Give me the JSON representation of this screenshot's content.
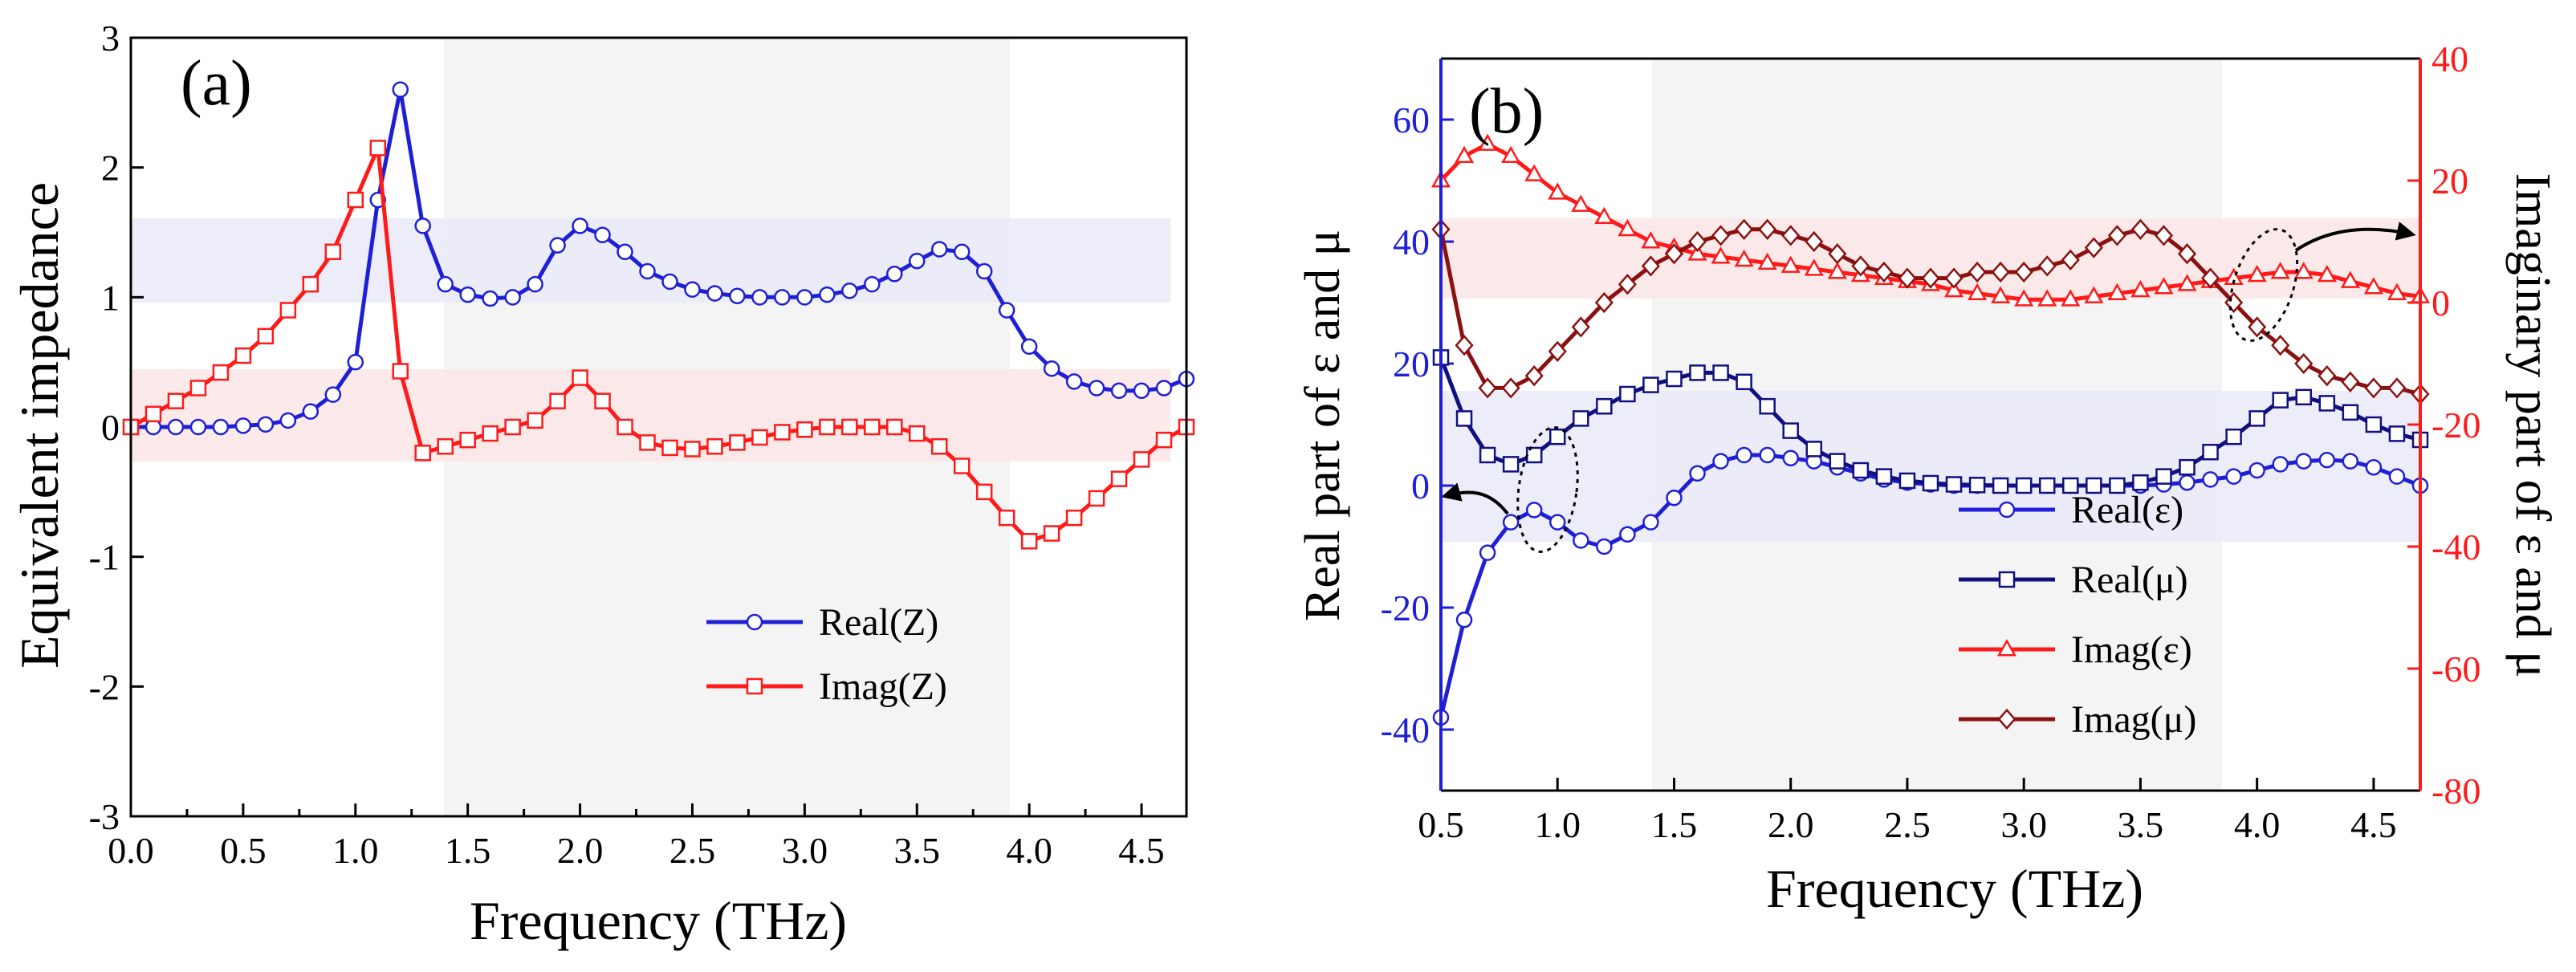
{
  "chart_data": [
    {
      "panel": "(a)",
      "type": "line",
      "xlabel": "Frequency (THz)",
      "ylabel": "Equivalent impedance",
      "xlim": [
        0,
        4.7
      ],
      "ylim": [
        -3,
        3
      ],
      "xticks": [
        "0.0",
        "0.5",
        "1.0",
        "1.5",
        "2.0",
        "2.5",
        "3.0",
        "3.5",
        "4.0",
        "4.5"
      ],
      "yticks": [
        "-3",
        "-2",
        "-1",
        "0",
        "1",
        "2",
        "3"
      ],
      "x": [
        0.0,
        0.1,
        0.2,
        0.3,
        0.4,
        0.5,
        0.6,
        0.7,
        0.8,
        0.9,
        1.0,
        1.1,
        1.2,
        1.3,
        1.4,
        1.5,
        1.6,
        1.7,
        1.8,
        1.9,
        2.0,
        2.1,
        2.2,
        2.3,
        2.4,
        2.5,
        2.6,
        2.7,
        2.8,
        2.9,
        3.0,
        3.1,
        3.2,
        3.3,
        3.4,
        3.5,
        3.6,
        3.7,
        3.8,
        3.9,
        4.0,
        4.1,
        4.2,
        4.3,
        4.4,
        4.5,
        4.6,
        4.7
      ],
      "series": [
        {
          "name": "Real(Z)",
          "color": "#1f1fd6",
          "marker": "circle",
          "values": [
            0.0,
            0.0,
            0.0,
            0.0,
            0.0,
            0.01,
            0.02,
            0.05,
            0.12,
            0.25,
            0.5,
            1.75,
            2.6,
            1.55,
            1.1,
            1.02,
            0.99,
            1.0,
            1.1,
            1.4,
            1.55,
            1.48,
            1.35,
            1.2,
            1.12,
            1.06,
            1.03,
            1.01,
            1.0,
            1.0,
            1.0,
            1.02,
            1.05,
            1.1,
            1.18,
            1.28,
            1.37,
            1.35,
            1.2,
            0.9,
            0.62,
            0.45,
            0.35,
            0.3,
            0.28,
            0.28,
            0.3,
            0.37
          ]
        },
        {
          "name": "Imag(Z)",
          "color": "#ff1a1a",
          "marker": "square",
          "values": [
            0.0,
            0.1,
            0.2,
            0.3,
            0.42,
            0.55,
            0.7,
            0.9,
            1.1,
            1.35,
            1.75,
            2.15,
            0.43,
            -0.2,
            -0.15,
            -0.1,
            -0.05,
            0.0,
            0.05,
            0.2,
            0.38,
            0.2,
            0.0,
            -0.12,
            -0.16,
            -0.17,
            -0.15,
            -0.12,
            -0.08,
            -0.04,
            -0.02,
            0.0,
            0.0,
            0.0,
            0.0,
            -0.05,
            -0.15,
            -0.3,
            -0.5,
            -0.7,
            -0.88,
            -0.82,
            -0.7,
            -0.55,
            -0.4,
            -0.25,
            -0.1,
            0.0
          ]
        }
      ],
      "legend": {
        "position": "bottom-right",
        "entries": [
          "Real(Z)",
          "Imag(Z)"
        ]
      }
    },
    {
      "panel": "(b)",
      "type": "line",
      "xlabel": "Frequency (THz)",
      "ylabel_left": "Real part of ε and μ",
      "ylabel_right": "Imaginary part of ε and μ",
      "xlim": [
        0.5,
        4.7
      ],
      "ylim_left": [
        -50,
        70
      ],
      "ylim_right": [
        -80,
        40
      ],
      "xticks": [
        "0.5",
        "1.0",
        "1.5",
        "2.0",
        "2.5",
        "3.0",
        "3.5",
        "4.0",
        "4.5"
      ],
      "yticks_left": [
        "-40",
        "-20",
        "0",
        "20",
        "40",
        "60"
      ],
      "yticks_right": [
        "-80",
        "-60",
        "-40",
        "-20",
        "0",
        "20",
        "40"
      ],
      "x": [
        0.5,
        0.6,
        0.7,
        0.8,
        0.9,
        1.0,
        1.1,
        1.2,
        1.3,
        1.4,
        1.5,
        1.6,
        1.7,
        1.8,
        1.9,
        2.0,
        2.1,
        2.2,
        2.3,
        2.4,
        2.5,
        2.6,
        2.7,
        2.8,
        2.9,
        3.0,
        3.1,
        3.2,
        3.3,
        3.4,
        3.5,
        3.6,
        3.7,
        3.8,
        3.9,
        4.0,
        4.1,
        4.2,
        4.3,
        4.4,
        4.5,
        4.6,
        4.7
      ],
      "series": [
        {
          "name": "Real(ε)",
          "axis": "left",
          "color": "#1f1fd6",
          "marker": "circle",
          "values": [
            -38,
            -22,
            -11,
            -6,
            -4,
            -6,
            -9,
            -10,
            -8,
            -6,
            -2,
            2,
            4,
            5,
            5,
            4.5,
            4,
            3,
            2,
            1,
            0.5,
            0.2,
            0,
            0,
            0,
            0,
            0,
            0,
            0,
            0,
            0,
            0.2,
            0.5,
            1,
            1.5,
            2.5,
            3.5,
            4,
            4.2,
            4,
            3,
            1.5,
            0
          ]
        },
        {
          "name": "Real(μ)",
          "axis": "left",
          "color": "#101080",
          "marker": "square",
          "values": [
            21,
            11,
            5,
            3.5,
            5,
            8,
            11,
            13,
            15,
            16.5,
            17.5,
            18.5,
            18.5,
            17,
            13,
            9,
            6,
            4,
            2.5,
            1.5,
            0.8,
            0.4,
            0.2,
            0.1,
            0,
            0,
            0,
            0,
            0,
            0,
            0.5,
            1.5,
            3,
            5.5,
            8,
            11,
            14,
            14.5,
            13.5,
            12,
            10,
            8.5,
            7.5
          ]
        },
        {
          "name": "Imag(ε)",
          "axis": "right",
          "color": "#ff1a1a",
          "marker": "triangle",
          "values": [
            20,
            24,
            26,
            24,
            21,
            18,
            16,
            14,
            12,
            10,
            9,
            8,
            7.5,
            7,
            6.5,
            6,
            5.5,
            5,
            4.5,
            4,
            3.5,
            3,
            2,
            1.5,
            1,
            0.5,
            0.5,
            0.5,
            1,
            1.5,
            2,
            2.5,
            3,
            3.5,
            4,
            4.5,
            5,
            5,
            4.5,
            3.5,
            2.5,
            1.5,
            1
          ]
        },
        {
          "name": "Imag(μ)",
          "axis": "right",
          "color": "#8b1010",
          "marker": "diamond",
          "values": [
            12,
            -7,
            -14,
            -14,
            -12,
            -8,
            -4,
            0,
            3,
            6,
            8,
            10,
            11,
            12,
            12,
            11,
            10,
            8,
            6,
            5,
            4,
            4,
            4,
            5,
            5,
            5,
            6,
            7,
            9,
            11,
            12,
            11,
            8,
            4,
            0,
            -4,
            -7,
            -10,
            -12,
            -13,
            -14,
            -14,
            -15
          ]
        }
      ],
      "legend": {
        "position": "bottom-right",
        "entries": [
          "Real(ε)",
          "Real(μ)",
          "Imag(ε)",
          "Imag(μ)"
        ]
      }
    }
  ]
}
